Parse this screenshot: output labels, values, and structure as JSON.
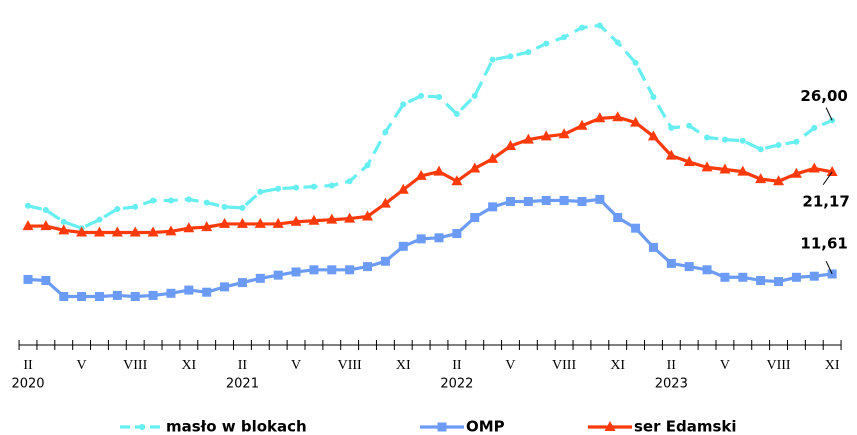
{
  "chart_data": {
    "type": "line",
    "categories": [
      "II",
      null,
      null,
      "V",
      null,
      null,
      "VIII",
      null,
      null,
      "XI",
      null,
      null,
      "II",
      null,
      null,
      "V",
      null,
      null,
      "VIII",
      null,
      null,
      "XI",
      null,
      null,
      "II",
      null,
      null,
      "V",
      null,
      null,
      "VIII",
      null,
      null,
      "XI",
      null,
      null,
      "II",
      null,
      null,
      "V",
      null,
      null,
      "VIII",
      null,
      null,
      "XI"
    ],
    "x_group_labels": [
      "2020",
      "2021",
      "2022",
      "2023"
    ],
    "ylim": [
      5,
      35
    ],
    "legend": "bottom",
    "series": [
      {
        "name": "masło w blokach",
        "color": "#66eef0",
        "dashed": true,
        "marker": "circle",
        "values": [
          18.0,
          17.6,
          16.5,
          15.9,
          16.7,
          17.7,
          17.9,
          18.5,
          18.5,
          18.6,
          18.3,
          17.9,
          17.8,
          19.3,
          19.6,
          19.7,
          19.8,
          19.9,
          20.3,
          21.8,
          24.9,
          27.5,
          28.3,
          28.2,
          26.6,
          28.3,
          31.7,
          32.0,
          32.4,
          33.2,
          33.8,
          34.7,
          34.9,
          33.3,
          31.4,
          28.2,
          25.3,
          25.5,
          24.4,
          24.2,
          24.1,
          23.3,
          23.7,
          24.0,
          25.3,
          26.0
        ],
        "value_labels": [
          null,
          null,
          null,
          null,
          null,
          null,
          null,
          null,
          null,
          null,
          null,
          null,
          null,
          null,
          null,
          null,
          null,
          null,
          null,
          null,
          null,
          null,
          null,
          null,
          null,
          null,
          null,
          null,
          null,
          null,
          null,
          null,
          null,
          null,
          null,
          null,
          null,
          null,
          null,
          null,
          null,
          null,
          null,
          null,
          null,
          "26,00"
        ]
      },
      {
        "name": "OMP",
        "color": "#6b9bf5",
        "dashed": false,
        "marker": "square",
        "values": [
          11.1,
          11.0,
          9.5,
          9.5,
          9.5,
          9.6,
          9.5,
          9.6,
          9.8,
          10.1,
          9.9,
          10.4,
          10.8,
          11.2,
          11.5,
          11.8,
          12.0,
          12.0,
          12.0,
          12.3,
          12.8,
          14.2,
          14.9,
          15.0,
          15.4,
          16.9,
          17.9,
          18.4,
          18.4,
          18.5,
          18.5,
          18.4,
          18.6,
          16.9,
          15.9,
          14.1,
          12.6,
          12.3,
          12.0,
          11.3,
          11.3,
          11.0,
          10.9,
          11.3,
          11.4,
          11.61
        ],
        "value_labels": [
          null,
          null,
          null,
          null,
          null,
          null,
          null,
          null,
          null,
          null,
          null,
          null,
          null,
          null,
          null,
          null,
          null,
          null,
          null,
          null,
          null,
          null,
          null,
          null,
          null,
          null,
          null,
          null,
          null,
          null,
          null,
          null,
          null,
          null,
          null,
          null,
          null,
          null,
          null,
          null,
          null,
          null,
          null,
          null,
          null,
          "11,61"
        ]
      },
      {
        "name": "ser Edamski",
        "color": "#ff3a0a",
        "dashed": false,
        "marker": "triangle",
        "values": [
          16.1,
          16.1,
          15.7,
          15.5,
          15.5,
          15.5,
          15.5,
          15.5,
          15.6,
          15.9,
          16.0,
          16.3,
          16.3,
          16.3,
          16.3,
          16.5,
          16.6,
          16.7,
          16.8,
          17.0,
          18.2,
          19.5,
          20.8,
          21.2,
          20.3,
          21.5,
          22.4,
          23.6,
          24.2,
          24.5,
          24.7,
          25.5,
          26.2,
          26.3,
          25.8,
          24.5,
          22.7,
          22.1,
          21.6,
          21.4,
          21.2,
          20.5,
          20.3,
          21.0,
          21.5,
          21.17
        ],
        "value_labels": [
          null,
          null,
          null,
          null,
          null,
          null,
          null,
          null,
          null,
          null,
          null,
          null,
          null,
          null,
          null,
          null,
          null,
          null,
          null,
          null,
          null,
          null,
          null,
          null,
          null,
          null,
          null,
          null,
          null,
          null,
          null,
          null,
          null,
          null,
          null,
          null,
          null,
          null,
          null,
          null,
          null,
          null,
          null,
          null,
          null,
          "21,17"
        ]
      }
    ]
  }
}
